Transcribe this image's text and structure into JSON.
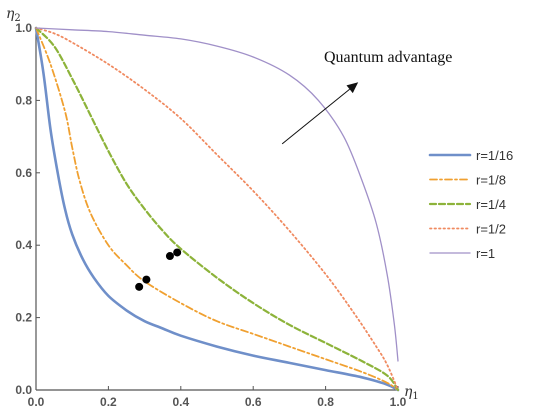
{
  "chart_data": {
    "type": "line",
    "xlabel": "η",
    "xlabel_sub": "1",
    "ylabel": "η",
    "ylabel_sub": "2",
    "xlim": [
      0,
      1
    ],
    "ylim": [
      0,
      1
    ],
    "xticks": [
      "0.0",
      "0.2",
      "0.4",
      "0.6",
      "0.8",
      "1.0"
    ],
    "yticks": [
      "0.0",
      "0.2",
      "0.4",
      "0.6",
      "0.8",
      "1.0"
    ],
    "legend_position": "right",
    "annotation": "Quantum advantage",
    "series": [
      {
        "name": "r=1/16",
        "color": "#6f8fc9",
        "style": "solid",
        "points": [
          [
            0.0,
            1.0
          ],
          [
            0.02,
            0.88
          ],
          [
            0.04,
            0.72
          ],
          [
            0.06,
            0.6
          ],
          [
            0.08,
            0.5
          ],
          [
            0.1,
            0.43
          ],
          [
            0.13,
            0.36
          ],
          [
            0.16,
            0.31
          ],
          [
            0.2,
            0.26
          ],
          [
            0.25,
            0.22
          ],
          [
            0.3,
            0.19
          ],
          [
            0.35,
            0.17
          ],
          [
            0.4,
            0.15
          ],
          [
            0.5,
            0.12
          ],
          [
            0.6,
            0.095
          ],
          [
            0.7,
            0.075
          ],
          [
            0.8,
            0.055
          ],
          [
            0.9,
            0.035
          ],
          [
            0.97,
            0.015
          ],
          [
            1.0,
            0.0
          ]
        ]
      },
      {
        "name": "r=1/8",
        "color": "#f0a030",
        "style": "dashdot",
        "points": [
          [
            0.0,
            1.0
          ],
          [
            0.04,
            0.9
          ],
          [
            0.08,
            0.77
          ],
          [
            0.1,
            0.67
          ],
          [
            0.12,
            0.58
          ],
          [
            0.15,
            0.49
          ],
          [
            0.2,
            0.4
          ],
          [
            0.25,
            0.345
          ],
          [
            0.3,
            0.3
          ],
          [
            0.4,
            0.24
          ],
          [
            0.5,
            0.19
          ],
          [
            0.6,
            0.155
          ],
          [
            0.7,
            0.12
          ],
          [
            0.8,
            0.085
          ],
          [
            0.9,
            0.05
          ],
          [
            0.97,
            0.02
          ],
          [
            1.0,
            0.0
          ]
        ]
      },
      {
        "name": "r=1/4",
        "color": "#8db33a",
        "style": "dashed",
        "points": [
          [
            0.0,
            1.0
          ],
          [
            0.05,
            0.95
          ],
          [
            0.1,
            0.86
          ],
          [
            0.15,
            0.76
          ],
          [
            0.2,
            0.66
          ],
          [
            0.25,
            0.57
          ],
          [
            0.3,
            0.5
          ],
          [
            0.35,
            0.44
          ],
          [
            0.4,
            0.39
          ],
          [
            0.5,
            0.31
          ],
          [
            0.6,
            0.24
          ],
          [
            0.7,
            0.18
          ],
          [
            0.8,
            0.13
          ],
          [
            0.9,
            0.08
          ],
          [
            0.97,
            0.04
          ],
          [
            1.0,
            0.0
          ]
        ]
      },
      {
        "name": "r=1/2",
        "color": "#f08a60",
        "style": "dotted",
        "points": [
          [
            0.0,
            1.0
          ],
          [
            0.05,
            0.985
          ],
          [
            0.1,
            0.96
          ],
          [
            0.2,
            0.9
          ],
          [
            0.3,
            0.83
          ],
          [
            0.4,
            0.75
          ],
          [
            0.5,
            0.65
          ],
          [
            0.6,
            0.55
          ],
          [
            0.7,
            0.44
          ],
          [
            0.8,
            0.32
          ],
          [
            0.88,
            0.21
          ],
          [
            0.94,
            0.12
          ],
          [
            0.97,
            0.07
          ],
          [
            1.0,
            0.0
          ]
        ]
      },
      {
        "name": "r=1",
        "color": "#a090c8",
        "style": "thin",
        "points": [
          [
            0.0,
            1.0
          ],
          [
            0.1,
            0.995
          ],
          [
            0.2,
            0.99
          ],
          [
            0.3,
            0.98
          ],
          [
            0.4,
            0.97
          ],
          [
            0.5,
            0.95
          ],
          [
            0.6,
            0.92
          ],
          [
            0.7,
            0.87
          ],
          [
            0.78,
            0.8
          ],
          [
            0.85,
            0.7
          ],
          [
            0.9,
            0.58
          ],
          [
            0.94,
            0.46
          ],
          [
            0.97,
            0.32
          ],
          [
            0.99,
            0.18
          ],
          [
            1.0,
            0.08
          ]
        ]
      }
    ],
    "scatter": [
      [
        0.285,
        0.285
      ],
      [
        0.305,
        0.305
      ],
      [
        0.37,
        0.37
      ],
      [
        0.39,
        0.38
      ]
    ],
    "arrow": {
      "from": [
        0.68,
        0.68
      ],
      "to": [
        0.89,
        0.85
      ]
    }
  }
}
